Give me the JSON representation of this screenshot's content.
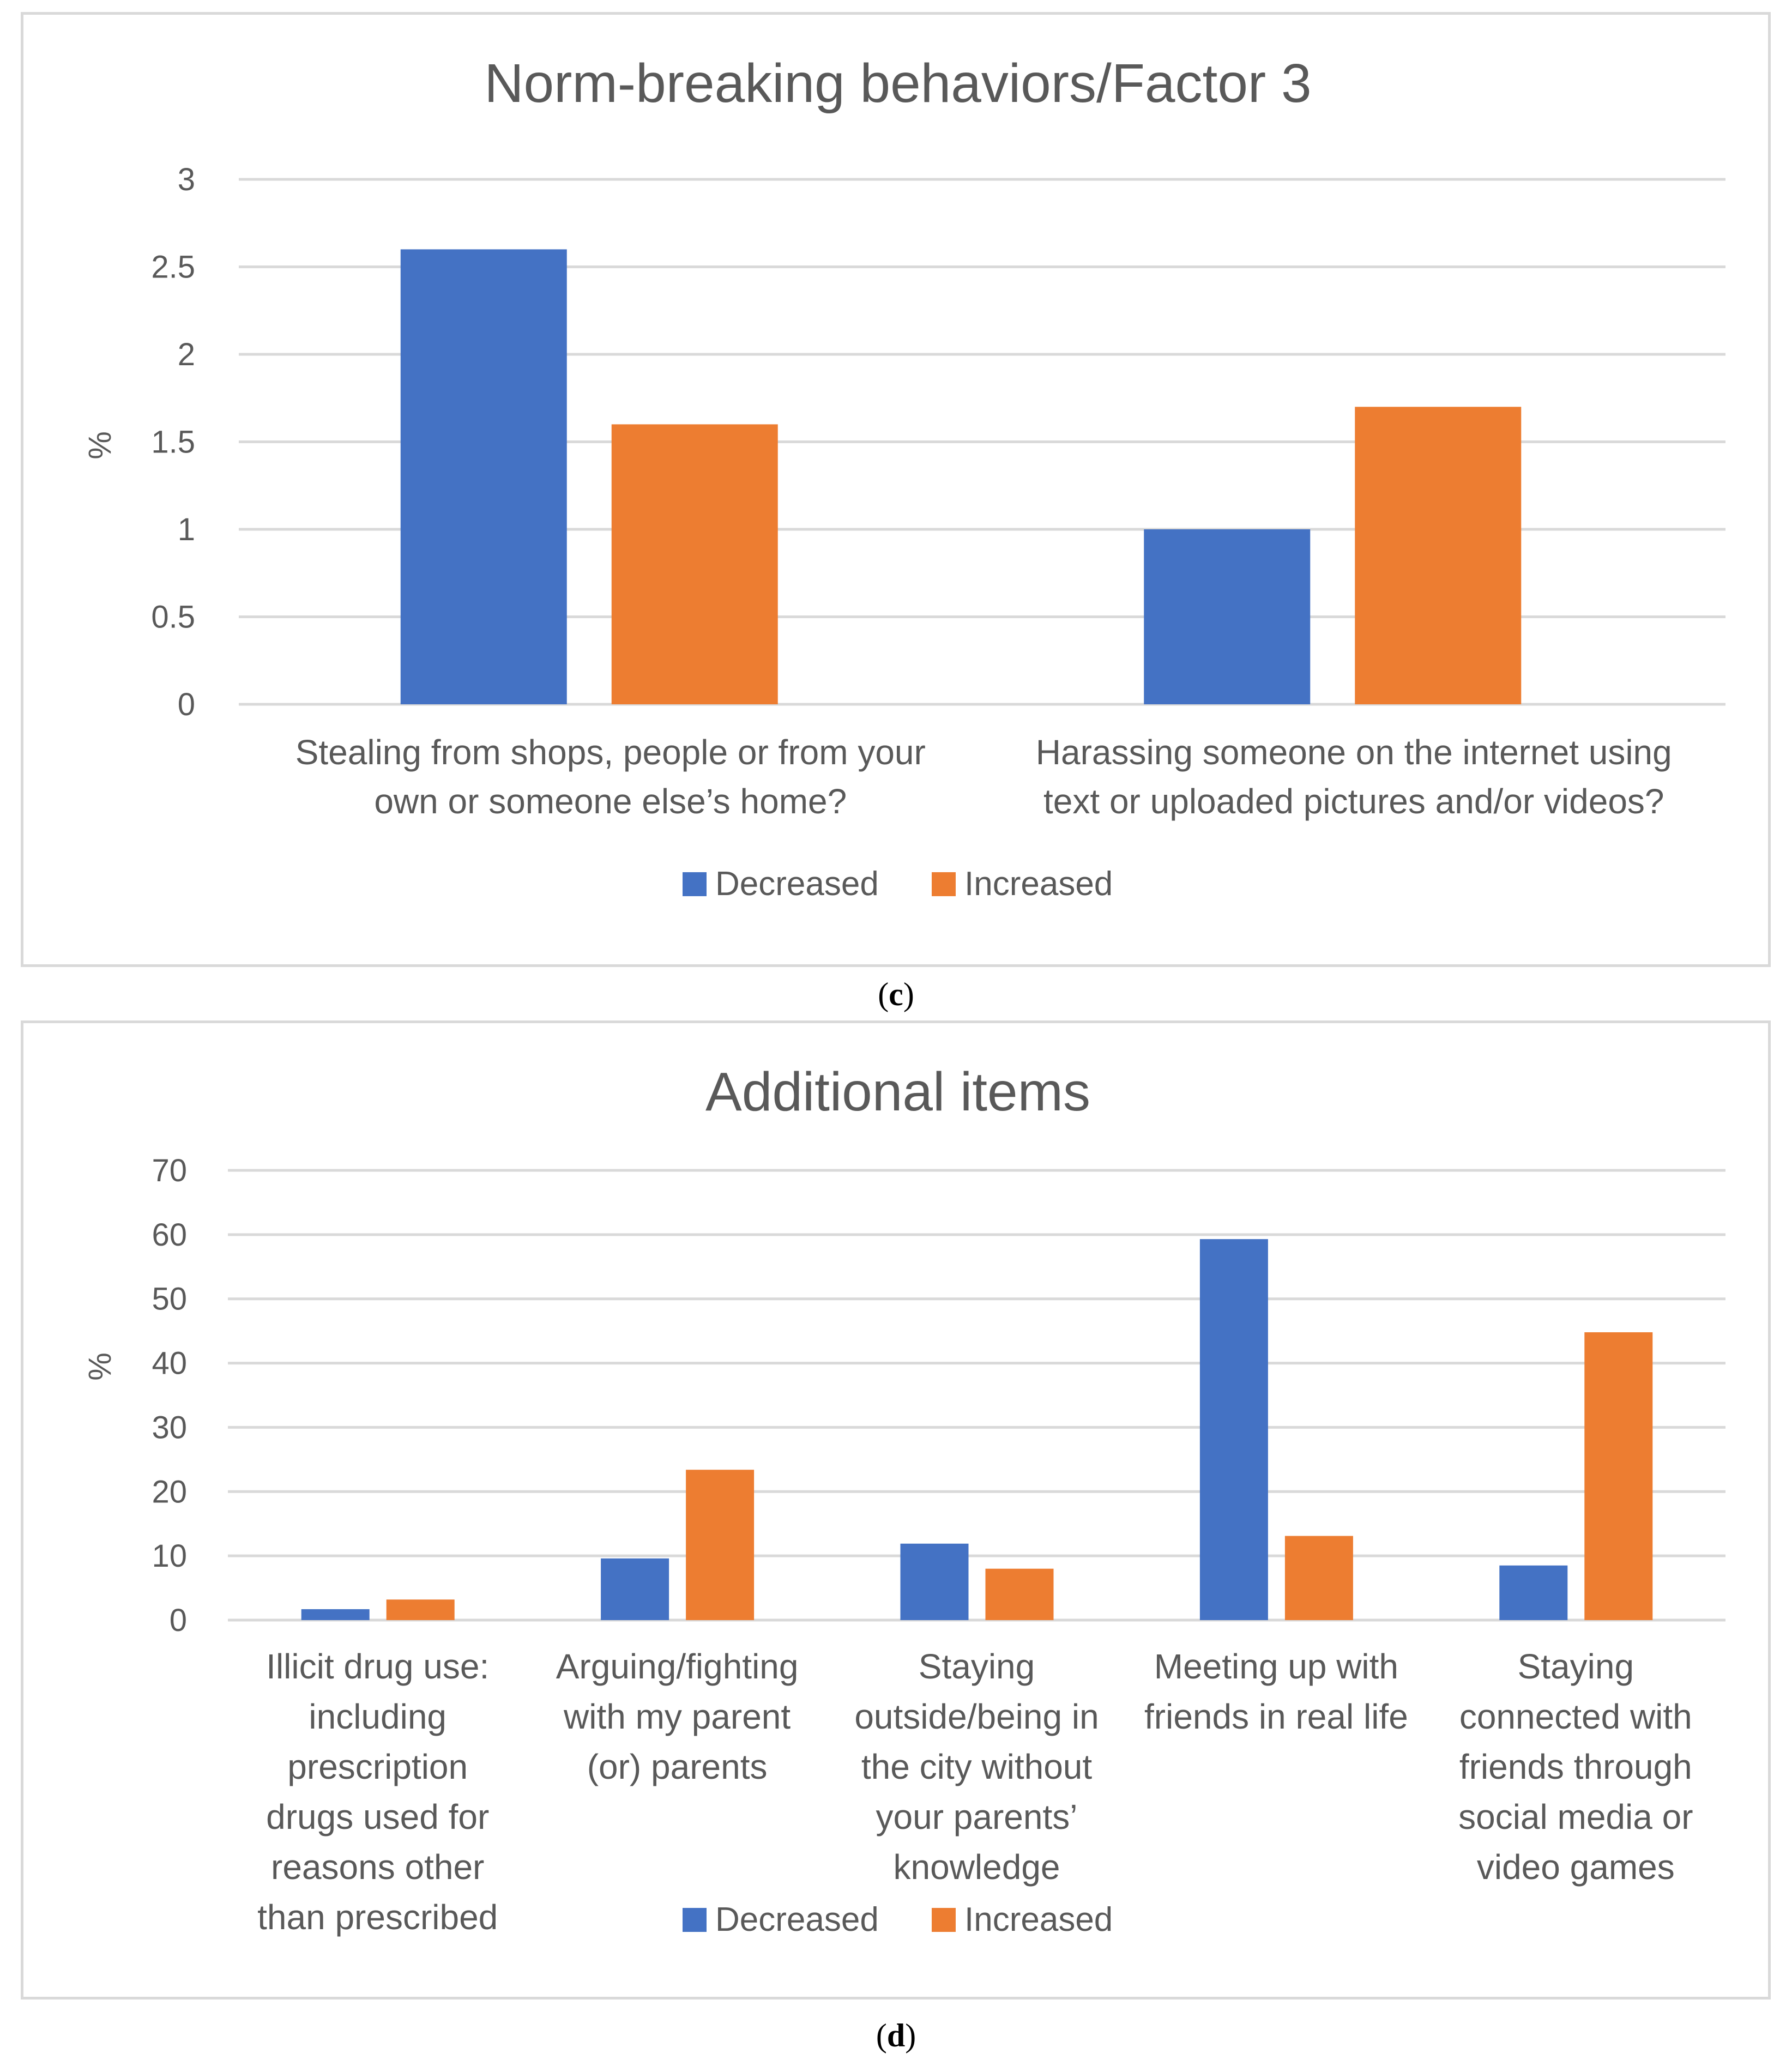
{
  "chart_data": [
    {
      "type": "bar",
      "title": "Norm-breaking behaviors/Factor 3",
      "ylabel": "%",
      "xlabel": "",
      "ylim": [
        0,
        3
      ],
      "yticks": [
        0,
        0.5,
        1,
        1.5,
        2,
        2.5,
        3
      ],
      "ytick_labels": [
        "0",
        "0.5",
        "1",
        "1.5",
        "2",
        "2.5",
        "3"
      ],
      "grid": true,
      "legend_position": "bottom",
      "categories": [
        [
          "Stealing from shops, people or from your",
          "own or someone else’s home?"
        ],
        [
          "Harassing someone on the internet using",
          "text or uploaded pictures and/or videos?"
        ]
      ],
      "series": [
        {
          "name": "Decreased",
          "color": "#4472c4",
          "values": [
            2.6,
            1.0
          ]
        },
        {
          "name": "Increased",
          "color": "#ed7d31",
          "values": [
            1.6,
            1.7
          ]
        }
      ],
      "caption": {
        "open": "(",
        "letter": "c",
        "close": ")"
      }
    },
    {
      "type": "bar",
      "title": "Additional items",
      "ylabel": "%",
      "xlabel": "",
      "ylim": [
        0,
        70
      ],
      "yticks": [
        0,
        10,
        20,
        30,
        40,
        50,
        60,
        70
      ],
      "ytick_labels": [
        "0",
        "10",
        "20",
        "30",
        "40",
        "50",
        "60",
        "70"
      ],
      "grid": true,
      "legend_position": "bottom",
      "categories": [
        [
          "Illicit drug use:",
          "including",
          "prescription",
          "drugs used for",
          "reasons other",
          "than prescribed"
        ],
        [
          "Arguing/fighting",
          "with my parent",
          "(or) parents"
        ],
        [
          "Staying",
          "outside/being in",
          "the city without",
          "your parents’",
          "knowledge"
        ],
        [
          "Meeting up with",
          "friends in real life"
        ],
        [
          "Staying",
          "connected with",
          "friends through",
          "social media or",
          "video games"
        ]
      ],
      "series": [
        {
          "name": "Decreased",
          "color": "#4472c4",
          "values": [
            1.7,
            9.6,
            11.9,
            59.3,
            8.5
          ]
        },
        {
          "name": "Increased",
          "color": "#ed7d31",
          "values": [
            3.2,
            23.4,
            8.0,
            13.1,
            44.8
          ]
        }
      ],
      "caption": {
        "open": "(",
        "letter": "d",
        "close": ")"
      }
    }
  ]
}
